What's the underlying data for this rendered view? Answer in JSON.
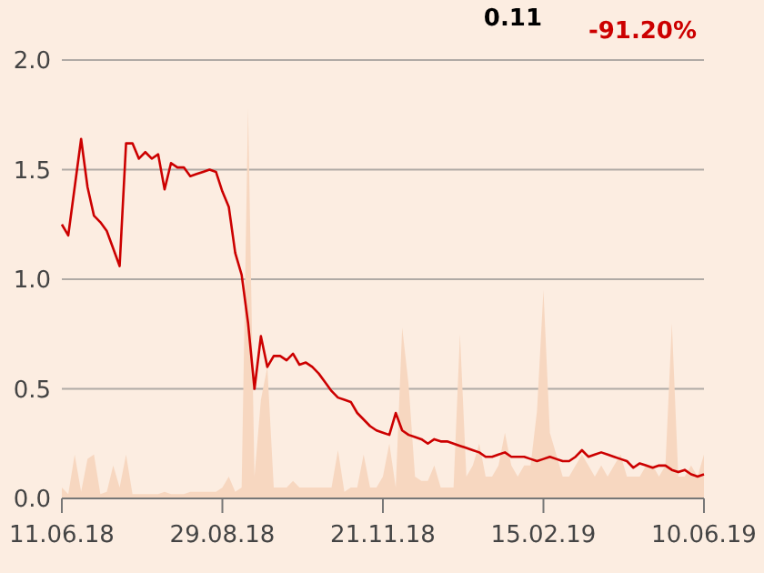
{
  "chart_data": {
    "type": "line",
    "annotations": [
      "0.11",
      "-91.20%"
    ],
    "categories": [
      "11.06.18",
      null,
      null,
      null,
      null,
      null,
      null,
      null,
      null,
      null,
      null,
      null,
      null,
      null,
      null,
      null,
      null,
      null,
      null,
      null,
      null,
      null,
      null,
      null,
      null,
      "29.08.18",
      null,
      null,
      null,
      null,
      null,
      null,
      null,
      null,
      null,
      null,
      null,
      null,
      null,
      null,
      null,
      null,
      null,
      null,
      null,
      null,
      null,
      null,
      null,
      null,
      "21.11.18",
      null,
      null,
      null,
      null,
      null,
      null,
      null,
      null,
      null,
      null,
      null,
      null,
      null,
      null,
      null,
      null,
      null,
      null,
      null,
      null,
      null,
      null,
      null,
      null,
      "15.02.19",
      null,
      null,
      null,
      null,
      null,
      null,
      null,
      null,
      null,
      null,
      null,
      null,
      null,
      null,
      null,
      null,
      null,
      null,
      null,
      null,
      null,
      null,
      null,
      null,
      "10.06.19"
    ],
    "ylim": [
      0,
      2
    ],
    "yticks": [
      {
        "value": 0,
        "label": "0.0"
      },
      {
        "value": 0.5,
        "label": "0.5"
      },
      {
        "value": 1,
        "label": "1.0"
      },
      {
        "value": 1.5,
        "label": "1.5"
      },
      {
        "value": 2,
        "label": "2.0"
      }
    ],
    "grid": "y",
    "marker": "none",
    "line_style": "solid",
    "series": [
      {
        "type": "area",
        "color": "#f7d7c0",
        "values": [
          0.05,
          0.02,
          0.2,
          0.03,
          0.18,
          0.2,
          0.02,
          0.03,
          0.15,
          0.05,
          0.2,
          0.02,
          0.02,
          0.02,
          0.02,
          0.02,
          0.03,
          0.02,
          0.02,
          0.02,
          0.03,
          0.03,
          0.03,
          0.03,
          0.03,
          0.05,
          0.1,
          0.03,
          0.05,
          1.78,
          0.1,
          0.45,
          0.6,
          0.05,
          0.05,
          0.05,
          0.08,
          0.05,
          0.05,
          0.05,
          0.05,
          0.05,
          0.05,
          0.22,
          0.03,
          0.05,
          0.05,
          0.2,
          0.05,
          0.05,
          0.1,
          0.25,
          0.05,
          0.78,
          0.52,
          0.1,
          0.08,
          0.08,
          0.15,
          0.05,
          0.05,
          0.05,
          0.75,
          0.1,
          0.15,
          0.25,
          0.1,
          0.1,
          0.15,
          0.3,
          0.15,
          0.1,
          0.15,
          0.15,
          0.4,
          0.95,
          0.3,
          0.2,
          0.1,
          0.1,
          0.15,
          0.2,
          0.15,
          0.1,
          0.15,
          0.1,
          0.15,
          0.2,
          0.1,
          0.1,
          0.1,
          0.15,
          0.15,
          0.1,
          0.15,
          0.8,
          0.1,
          0.1,
          0.15,
          0.1,
          0.2
        ]
      },
      {
        "color": "#cc0000",
        "values": [
          1.25,
          1.2,
          1.42,
          1.64,
          1.42,
          1.29,
          1.26,
          1.22,
          1.14,
          1.06,
          1.62,
          1.62,
          1.55,
          1.58,
          1.55,
          1.57,
          1.41,
          1.53,
          1.51,
          1.51,
          1.47,
          1.48,
          1.49,
          1.5,
          1.49,
          1.4,
          1.33,
          1.12,
          1.02,
          0.8,
          0.5,
          0.74,
          0.6,
          0.65,
          0.65,
          0.63,
          0.66,
          0.61,
          0.62,
          0.6,
          0.57,
          0.53,
          0.49,
          0.46,
          0.45,
          0.44,
          0.39,
          0.36,
          0.33,
          0.31,
          0.3,
          0.29,
          0.39,
          0.31,
          0.29,
          0.28,
          0.27,
          0.25,
          0.27,
          0.26,
          0.26,
          0.25,
          0.24,
          0.23,
          0.22,
          0.21,
          0.19,
          0.19,
          0.2,
          0.21,
          0.19,
          0.19,
          0.19,
          0.18,
          0.17,
          0.18,
          0.19,
          0.18,
          0.17,
          0.17,
          0.19,
          0.22,
          0.19,
          0.2,
          0.21,
          0.2,
          0.19,
          0.18,
          0.17,
          0.14,
          0.16,
          0.15,
          0.14,
          0.15,
          0.15,
          0.13,
          0.12,
          0.13,
          0.11,
          0.1,
          0.11
        ]
      }
    ]
  }
}
